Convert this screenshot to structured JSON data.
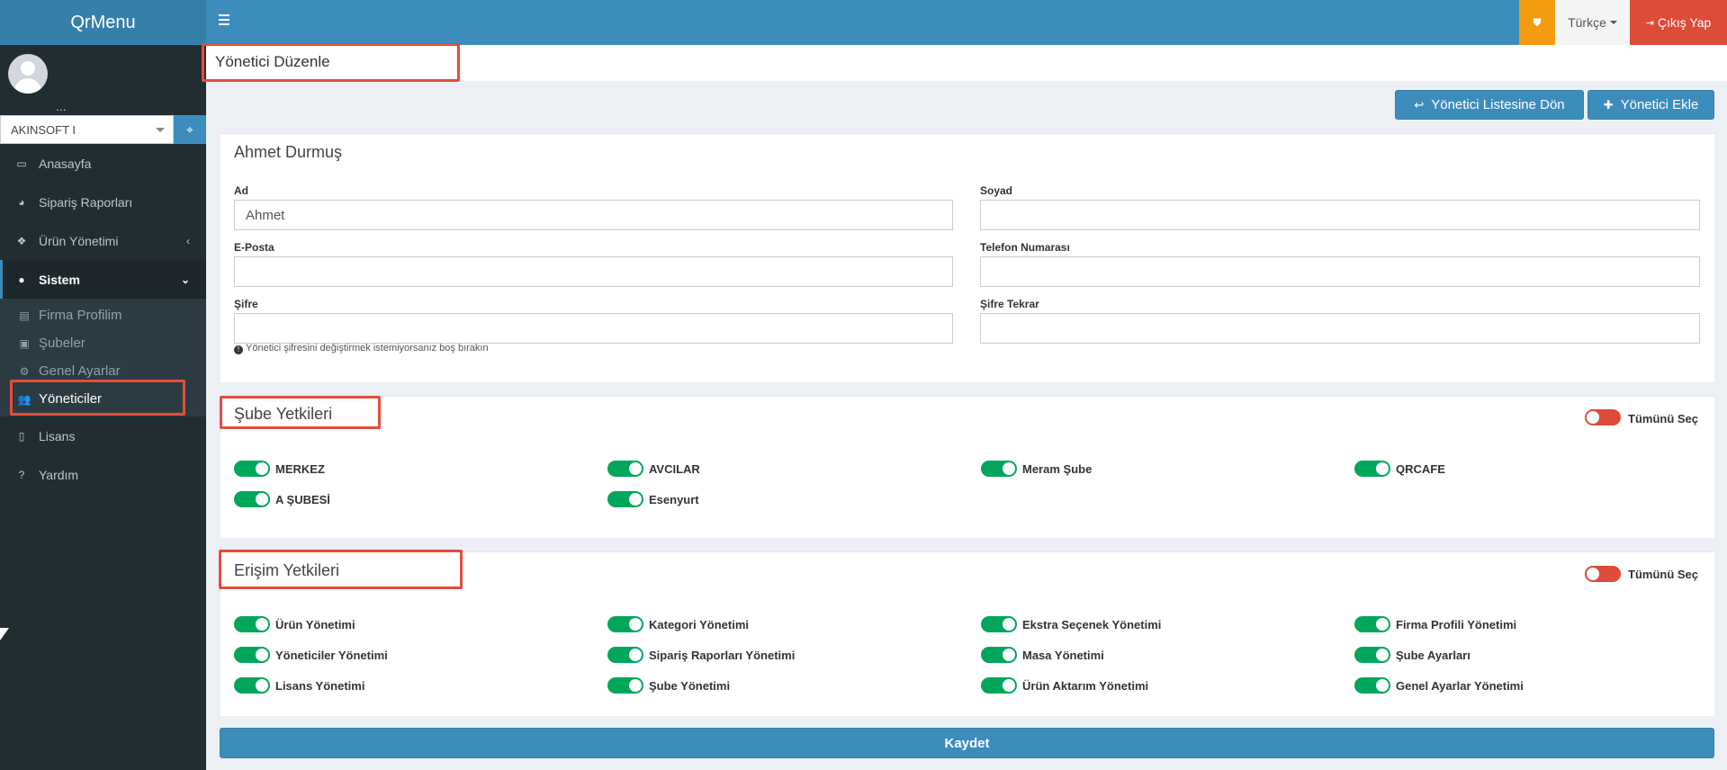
{
  "app": {
    "logo": "QrMenu"
  },
  "sidebar": {
    "user_name_partial": "...",
    "firm_select": {
      "value": "AKINSOFT I"
    },
    "items": [
      {
        "label": "Anasayfa",
        "icon": "desktop-icon"
      },
      {
        "label": "Sipariş Raporları",
        "icon": "pie-chart-icon"
      },
      {
        "label": "Ürün Yönetimi",
        "icon": "cubes-icon"
      },
      {
        "label": "Sistem",
        "icon": "user-icon"
      },
      {
        "label": "Lisans",
        "icon": "file-icon"
      },
      {
        "label": "Yardım",
        "icon": "question-icon"
      }
    ],
    "sub_items": [
      {
        "label": "Firma Profilim",
        "icon": "id-card-icon"
      },
      {
        "label": "Şubeler",
        "icon": "briefcase-icon"
      },
      {
        "label": "Genel Ayarlar",
        "icon": "cogs-icon"
      },
      {
        "label": "Yöneticiler",
        "icon": "users-icon"
      }
    ]
  },
  "topbar": {
    "language": "Türkçe",
    "logout": "Çıkış Yap"
  },
  "page": {
    "title": "Yönetici Düzenle",
    "back_button": "Yönetici Listesine Dön",
    "add_button": "Yönetici Ekle"
  },
  "form": {
    "title": "Ahmet Durmuş",
    "ad_label": "Ad",
    "ad_value": "Ahmet",
    "soyad_label": "Soyad",
    "soyad_value": "",
    "email_label": "E-Posta",
    "email_value": "",
    "phone_label": "Telefon Numarası",
    "phone_value": "",
    "password_label": "Şifre",
    "password_value": "",
    "password_repeat_label": "Şifre Tekrar",
    "password_repeat_value": "",
    "help": "Yönetici şifresini değiştirmek istemiyorsanız boş bırakın"
  },
  "branch_perms": {
    "title": "Şube Yetkileri",
    "select_all": "Tümünü Seç",
    "select_all_on": false,
    "items": [
      {
        "label": "MERKEZ",
        "on": true
      },
      {
        "label": "AVCILAR",
        "on": true
      },
      {
        "label": "Meram Şube",
        "on": true
      },
      {
        "label": "QRCAFE",
        "on": true
      },
      {
        "label": "A ŞUBESİ",
        "on": true
      },
      {
        "label": "Esenyurt",
        "on": true
      }
    ]
  },
  "access_perms": {
    "title": "Erişim Yetkileri",
    "select_all": "Tümünü Seç",
    "select_all_on": false,
    "items": [
      {
        "label": "Ürün Yönetimi",
        "on": true
      },
      {
        "label": "Kategori Yönetimi",
        "on": true
      },
      {
        "label": "Ekstra Seçenek Yönetimi",
        "on": true
      },
      {
        "label": "Firma Profili Yönetimi",
        "on": true
      },
      {
        "label": "Yöneticiler Yönetimi",
        "on": true
      },
      {
        "label": "Sipariş Raporları Yönetimi",
        "on": true
      },
      {
        "label": "Masa Yönetimi",
        "on": true
      },
      {
        "label": "Şube Ayarları",
        "on": true
      },
      {
        "label": "Lisans Yönetimi",
        "on": true
      },
      {
        "label": "Şube Yönetimi",
        "on": true
      },
      {
        "label": "Ürün Aktarım Yönetimi",
        "on": true
      },
      {
        "label": "Genel Ayarlar Yönetimi",
        "on": true
      }
    ]
  },
  "save_button": "Kaydet",
  "colors": {
    "primary": "#3c8dbc",
    "sidebar": "#222d32",
    "toggle_on": "#00a65a",
    "toggle_off": "#dd4b39",
    "warning": "#f39c12",
    "highlight_outline": "#e74c3c"
  }
}
